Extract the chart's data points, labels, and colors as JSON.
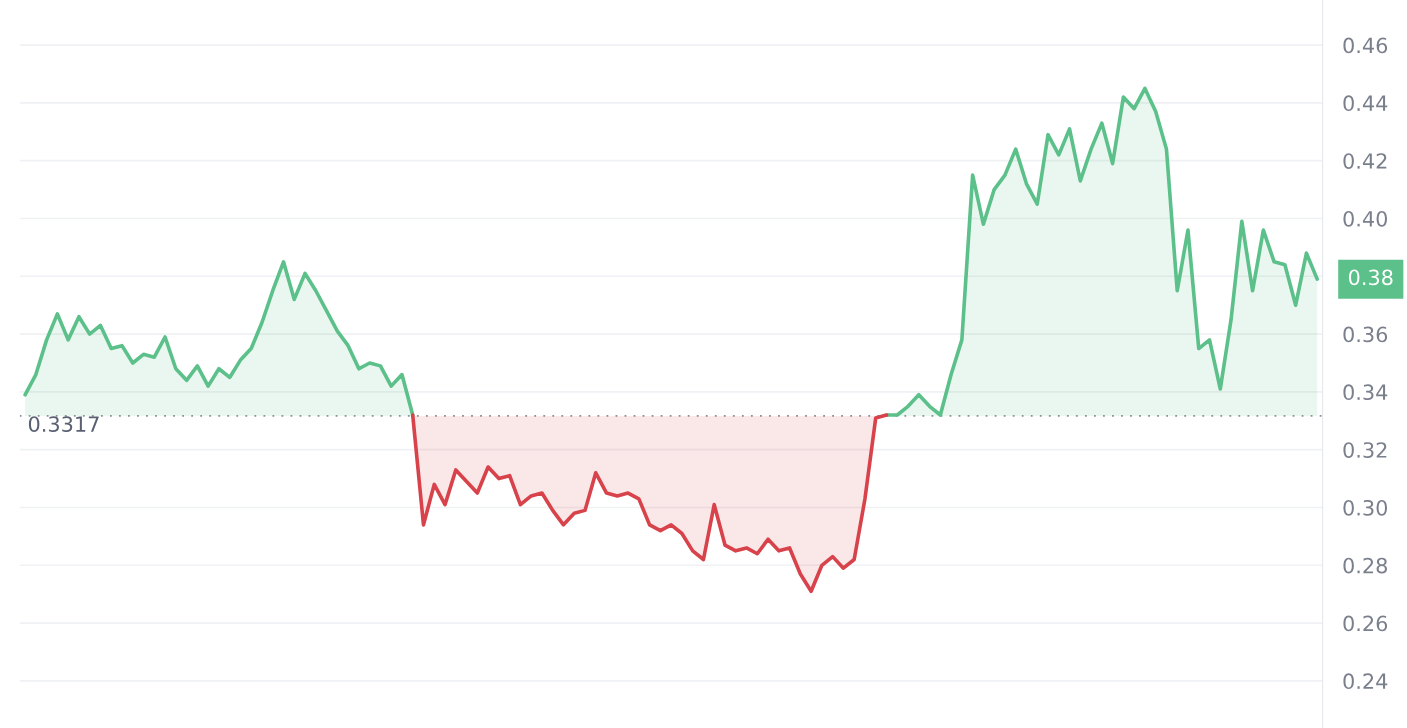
{
  "chart_data": {
    "type": "line",
    "categories": [
      null,
      null,
      null,
      null,
      null,
      null,
      null,
      null,
      null,
      null,
      null,
      null,
      null,
      null,
      null,
      null,
      null,
      null,
      null,
      null,
      null,
      null,
      null,
      null,
      null,
      null,
      null,
      null,
      null,
      null,
      null,
      null,
      null,
      null,
      null,
      null,
      null,
      null,
      null,
      null,
      null,
      null,
      null,
      null,
      null,
      null,
      null,
      null,
      null,
      null,
      null,
      null,
      null,
      null,
      null,
      null,
      null,
      null,
      null,
      null,
      null,
      null,
      null,
      null,
      null,
      null,
      null,
      null,
      null,
      null,
      null,
      null,
      null,
      null,
      null,
      null,
      null,
      null,
      null,
      null,
      null,
      null,
      null,
      null,
      null,
      null,
      null,
      null,
      null,
      null,
      null,
      null,
      null,
      null,
      null,
      null,
      null,
      null,
      null,
      null,
      null,
      null,
      null,
      null,
      null,
      null,
      null,
      null,
      null,
      null,
      null,
      null,
      null,
      null,
      null,
      null,
      null,
      null,
      null,
      null,
      null
    ],
    "series": [
      {
        "color": "#5cc08a",
        "values": [
          0.339,
          0.346,
          0.358,
          0.367,
          0.358,
          0.366,
          0.36,
          0.363,
          0.355,
          0.356,
          0.35,
          0.353,
          0.352,
          0.359,
          0.348,
          0.344,
          0.349,
          0.342,
          0.348,
          0.345,
          0.351,
          0.355,
          0.364,
          0.375,
          0.385,
          0.372,
          0.381,
          0.375,
          0.368,
          0.361,
          0.356,
          0.348,
          0.35,
          0.349,
          0.342,
          0.346,
          0.332,
          null,
          null,
          null,
          null,
          null,
          null,
          null,
          null,
          null,
          null,
          null,
          null,
          null,
          null,
          null,
          null,
          null,
          null,
          null,
          null,
          null,
          null,
          null,
          null,
          null,
          null,
          null,
          null,
          null,
          null,
          null,
          null,
          null,
          null,
          null,
          null,
          null,
          null,
          null,
          null,
          null,
          null,
          null,
          0.332,
          0.332,
          0.335,
          0.339,
          0.335,
          0.332,
          0.346,
          0.358,
          0.415,
          0.398,
          0.41,
          0.415,
          0.424,
          0.412,
          0.405,
          0.429,
          0.422,
          0.431,
          0.413,
          0.424,
          0.433,
          0.419,
          0.442,
          0.438,
          0.445,
          0.437,
          0.424,
          0.375,
          0.396,
          0.355,
          0.358,
          0.341,
          0.365,
          0.399,
          0.375,
          0.396,
          0.385,
          0.384,
          0.37,
          0.388,
          0.379
        ]
      },
      {
        "color": "#d8434b",
        "values": [
          null,
          null,
          null,
          null,
          null,
          null,
          null,
          null,
          null,
          null,
          null,
          null,
          null,
          null,
          null,
          null,
          null,
          null,
          null,
          null,
          null,
          null,
          null,
          null,
          null,
          null,
          null,
          null,
          null,
          null,
          null,
          null,
          null,
          null,
          null,
          null,
          0.332,
          0.294,
          0.308,
          0.301,
          0.313,
          0.309,
          0.305,
          0.314,
          0.31,
          0.311,
          0.301,
          0.304,
          0.305,
          0.299,
          0.294,
          0.298,
          0.299,
          0.312,
          0.305,
          0.304,
          0.305,
          0.303,
          0.294,
          0.292,
          0.294,
          0.291,
          0.285,
          0.282,
          0.301,
          0.287,
          0.285,
          0.286,
          0.284,
          0.289,
          0.285,
          0.286,
          0.277,
          0.271,
          0.28,
          0.283,
          0.279,
          0.282,
          0.303,
          0.331,
          0.332,
          null,
          null,
          null,
          null,
          null,
          null,
          null,
          null,
          null,
          null,
          null,
          null,
          null,
          null,
          null,
          null,
          null,
          null,
          null,
          null,
          null,
          null,
          null,
          null,
          null,
          null,
          null,
          null,
          null,
          null,
          null,
          null,
          null,
          null,
          null,
          null,
          null,
          null,
          null,
          null
        ]
      }
    ],
    "ylim": [
      0.2237,
      0.4756
    ],
    "yticks": [
      {
        "value": 0.24,
        "label": "0.24"
      },
      {
        "value": 0.26,
        "label": "0.26"
      },
      {
        "value": 0.28,
        "label": "0.28"
      },
      {
        "value": 0.3,
        "label": "0.30"
      },
      {
        "value": 0.32,
        "label": "0.32"
      },
      {
        "value": 0.34,
        "label": "0.34"
      },
      {
        "value": 0.36,
        "label": "0.36"
      },
      {
        "value": 0.38,
        "label": null
      },
      {
        "value": 0.4,
        "label": "0.40"
      },
      {
        "value": 0.42,
        "label": "0.42"
      },
      {
        "value": 0.44,
        "label": "0.44"
      },
      {
        "value": 0.46,
        "label": "0.46"
      }
    ],
    "ref_lines": [
      {
        "axis": "y",
        "value": 0.3317,
        "label": "0.3317",
        "color": "#8a8f99",
        "line_style": "dotted"
      }
    ],
    "annotations": [
      "0.38"
    ],
    "grid": "y",
    "tick_labels": "y"
  }
}
